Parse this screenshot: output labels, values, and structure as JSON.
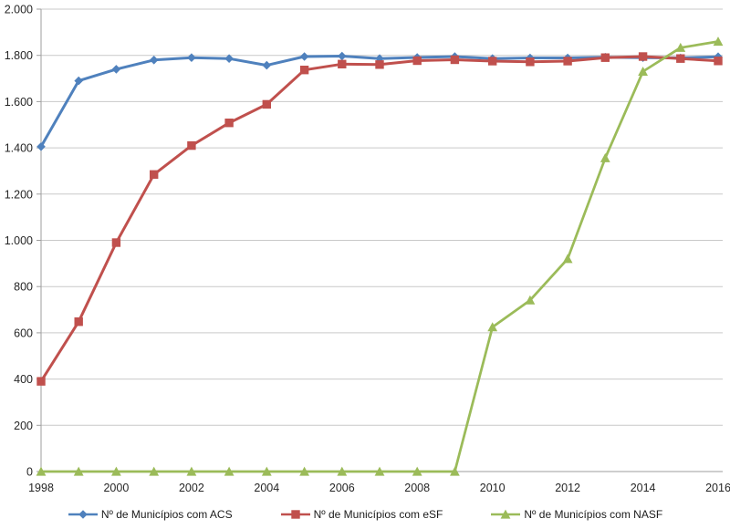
{
  "chart_data": {
    "type": "line",
    "title": "",
    "xlabel": "",
    "ylabel": "",
    "x": [
      1998,
      1999,
      2000,
      2001,
      2002,
      2003,
      2004,
      2005,
      2006,
      2007,
      2008,
      2009,
      2010,
      2011,
      2012,
      2013,
      2014,
      2015,
      2016
    ],
    "x_tick_labels": [
      "1998",
      "2000",
      "2002",
      "2004",
      "2006",
      "2008",
      "2010",
      "2012",
      "2014",
      "2016"
    ],
    "y_ticks": [
      {
        "value": 0,
        "label": "0"
      },
      {
        "value": 200,
        "label": "200"
      },
      {
        "value": 400,
        "label": "400"
      },
      {
        "value": 600,
        "label": "600"
      },
      {
        "value": 800,
        "label": "800"
      },
      {
        "value": 1000,
        "label": "1.000"
      },
      {
        "value": 1200,
        "label": "1.200"
      },
      {
        "value": 1400,
        "label": "1.400"
      },
      {
        "value": 1600,
        "label": "1.600"
      },
      {
        "value": 1800,
        "label": "1.800"
      },
      {
        "value": 2000,
        "label": "2.000"
      }
    ],
    "ylim": [
      0,
      2000
    ],
    "grid": "horizontal",
    "legend_position": "bottom-center",
    "series": [
      {
        "name": "Nº de Municípios com ACS",
        "color": "#4F81BD",
        "marker": "diamond",
        "values": [
          1405,
          1690,
          1740,
          1780,
          1790,
          1786,
          1757,
          1795,
          1797,
          1786,
          1791,
          1795,
          1786,
          1789,
          1789,
          1792,
          1790,
          1789,
          1794
        ]
      },
      {
        "name": "Nº de Municípios com eSF",
        "color": "#C0504D",
        "marker": "square",
        "values": [
          390,
          648,
          990,
          1285,
          1410,
          1508,
          1588,
          1737,
          1762,
          1760,
          1777,
          1781,
          1775,
          1772,
          1775,
          1790,
          1795,
          1786,
          1776
        ]
      },
      {
        "name": "Nº de Municípios com NASF",
        "color": "#9BBB59",
        "marker": "triangle",
        "values": [
          0,
          0,
          0,
          0,
          0,
          0,
          0,
          0,
          0,
          0,
          0,
          0,
          625,
          741,
          920,
          1356,
          1730,
          1833,
          1860
        ]
      }
    ]
  },
  "style": {
    "gridline_color": "#C9C9C9",
    "axis_color": "#9E9E9E",
    "tick_text_color": "#262626",
    "background": "#FFFFFF"
  }
}
